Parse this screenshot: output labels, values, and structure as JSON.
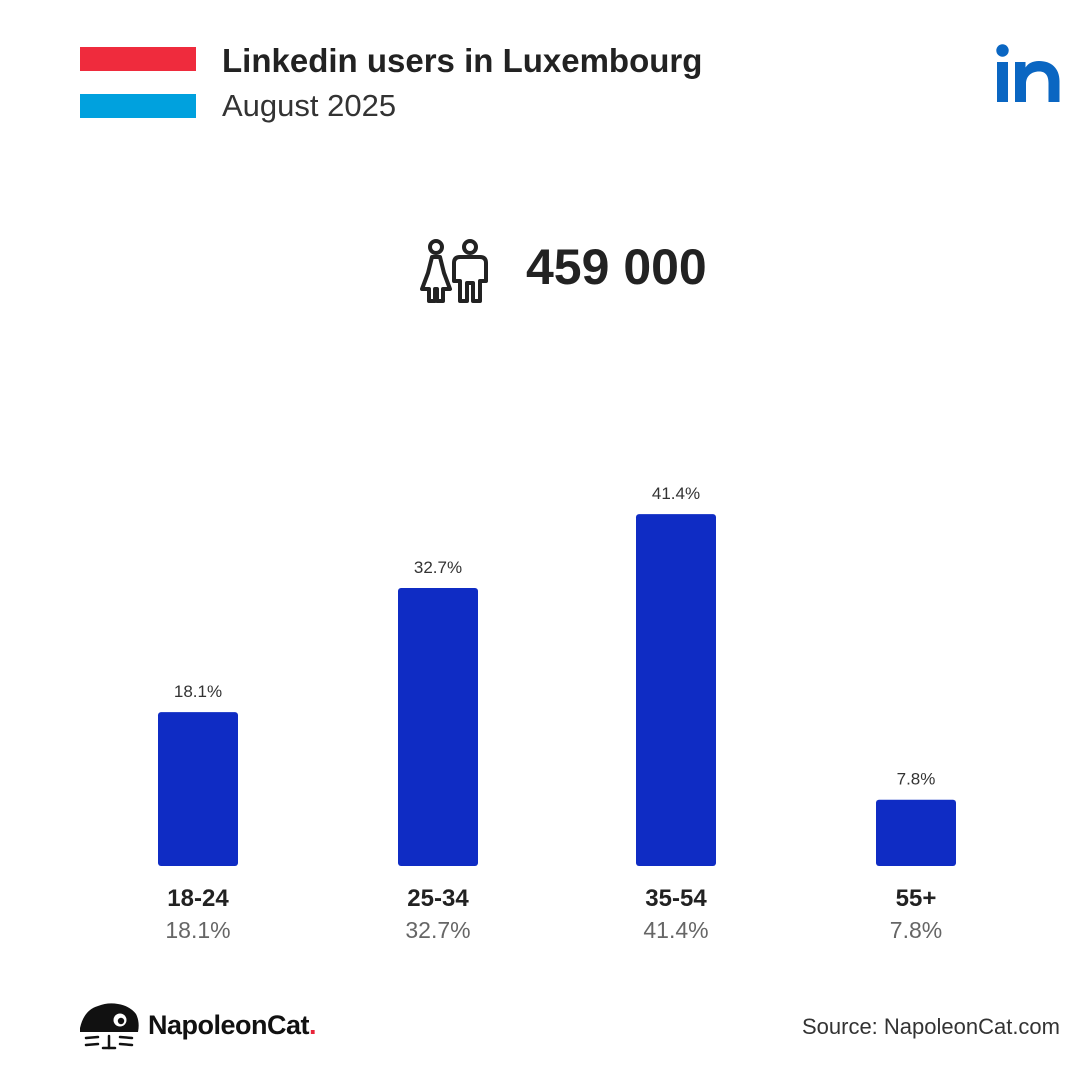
{
  "header": {
    "title": "Linkedin users in Luxembourg",
    "subtitle": "August 2025",
    "flag_colors": [
      "#ef2b3d",
      "#ffffff",
      "#00a1de"
    ],
    "logo_icon": "linkedin-icon",
    "logo_text": "in"
  },
  "summary": {
    "icon": "people-icon",
    "total_users": "459 000"
  },
  "chart_data": {
    "type": "bar",
    "categories": [
      "18-24",
      "25-34",
      "35-54",
      "55+"
    ],
    "values": [
      18.1,
      32.7,
      41.4,
      7.8
    ],
    "value_labels": [
      "18.1%",
      "32.7%",
      "41.4%",
      "7.8%"
    ],
    "bar_color": "#0f2cc4",
    "title": "",
    "xlabel": "",
    "ylabel": "",
    "grid": false,
    "legend": "none"
  },
  "footer": {
    "brand_name": "NapoleonCat",
    "brand_dot": ".",
    "brand_icon": "napoleoncat-logo-icon",
    "source": "Source: NapoleonCat.com"
  }
}
